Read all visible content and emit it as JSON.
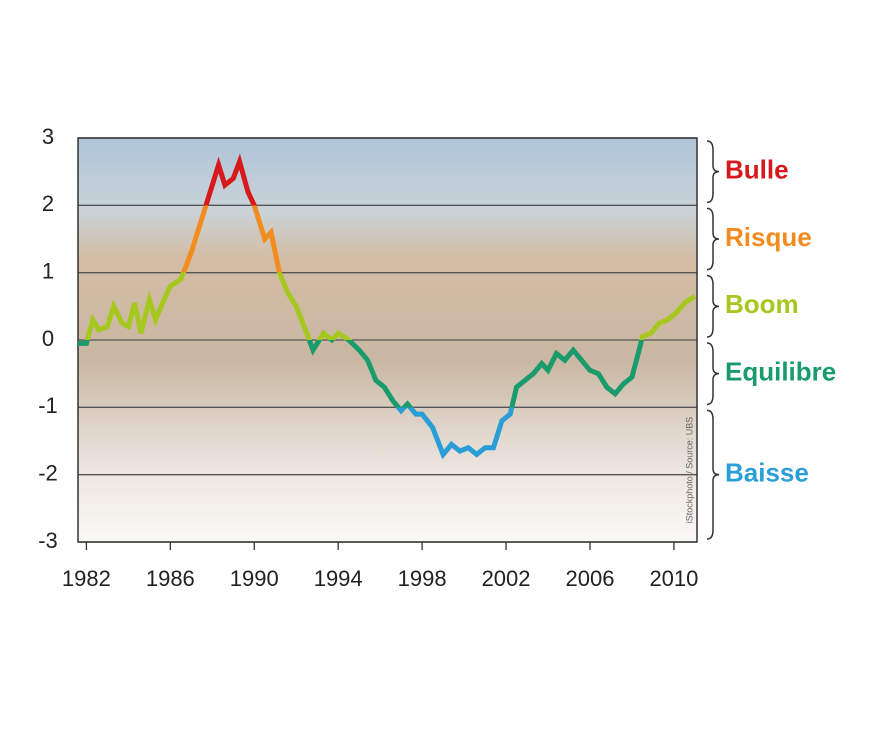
{
  "chart_data": {
    "type": "line",
    "credit": "iStockphoto / Source: UBS",
    "x": [
      1981.6,
      1982.0,
      1982.3,
      1982.6,
      1983.0,
      1983.3,
      1983.7,
      1984.0,
      1984.3,
      1984.6,
      1985.0,
      1985.3,
      1985.7,
      1986.0,
      1986.5,
      1987.0,
      1987.5,
      1988.0,
      1988.3,
      1988.6,
      1989.0,
      1989.3,
      1989.7,
      1990.0,
      1990.5,
      1990.8,
      1991.2,
      1991.6,
      1992.0,
      1992.5,
      1992.8,
      1993.3,
      1993.7,
      1994.0,
      1994.5,
      1995.0,
      1995.4,
      1995.8,
      1996.2,
      1996.6,
      1997.0,
      1997.3,
      1997.7,
      1998.0,
      1998.5,
      1999.0,
      1999.4,
      1999.8,
      2000.2,
      2000.6,
      2001.0,
      2001.4,
      2001.8,
      2002.2,
      2002.5,
      2002.9,
      2003.3,
      2003.7,
      2004.0,
      2004.4,
      2004.8,
      2005.2,
      2005.6,
      2006.0,
      2006.4,
      2006.8,
      2007.2,
      2007.6,
      2008.0,
      2008.3,
      2008.5,
      2008.9,
      2009.3,
      2009.7,
      2010.1,
      2010.5,
      2011.0
    ],
    "series": [
      {
        "values": [
          -0.05,
          -0.05,
          0.3,
          0.15,
          0.2,
          0.5,
          0.25,
          0.2,
          0.55,
          0.1,
          0.6,
          0.3,
          0.6,
          0.8,
          0.9,
          1.3,
          1.8,
          2.3,
          2.6,
          2.3,
          2.4,
          2.65,
          2.2,
          2.0,
          1.5,
          1.6,
          1.0,
          0.7,
          0.5,
          0.1,
          -0.15,
          0.1,
          0.0,
          0.1,
          0.0,
          -0.15,
          -0.3,
          -0.6,
          -0.7,
          -0.9,
          -1.05,
          -0.95,
          -1.1,
          -1.1,
          -1.3,
          -1.7,
          -1.55,
          -1.65,
          -1.6,
          -1.7,
          -1.6,
          -1.6,
          -1.2,
          -1.1,
          -0.7,
          -0.6,
          -0.5,
          -0.35,
          -0.45,
          -0.2,
          -0.3,
          -0.15,
          -0.3,
          -0.45,
          -0.5,
          -0.7,
          -0.8,
          -0.65,
          -0.55,
          -0.2,
          0.05,
          0.1,
          0.25,
          0.3,
          0.4,
          0.55,
          0.65
        ]
      }
    ],
    "zones": [
      {
        "name": "Bulle",
        "color": "#d7191c",
        "from": 2,
        "to": 3
      },
      {
        "name": "Risque",
        "color": "#f28c1e",
        "from": 1,
        "to": 2
      },
      {
        "name": "Boom",
        "color": "#a6c81e",
        "from": 0,
        "to": 1
      },
      {
        "name": "Equilibre",
        "color": "#1a9b6c",
        "from": -1,
        "to": 0
      },
      {
        "name": "Baisse",
        "color": "#2b9ed8",
        "from": -3,
        "to": -1
      }
    ],
    "xlim": [
      1981.6,
      2011.1
    ],
    "ylim": [
      -3,
      3
    ],
    "xticks": [
      1982,
      1986,
      1990,
      1994,
      1998,
      2002,
      2006,
      2010
    ],
    "yticks": [
      -3,
      -2,
      -1,
      0,
      1,
      2,
      3
    ],
    "grid": true
  }
}
